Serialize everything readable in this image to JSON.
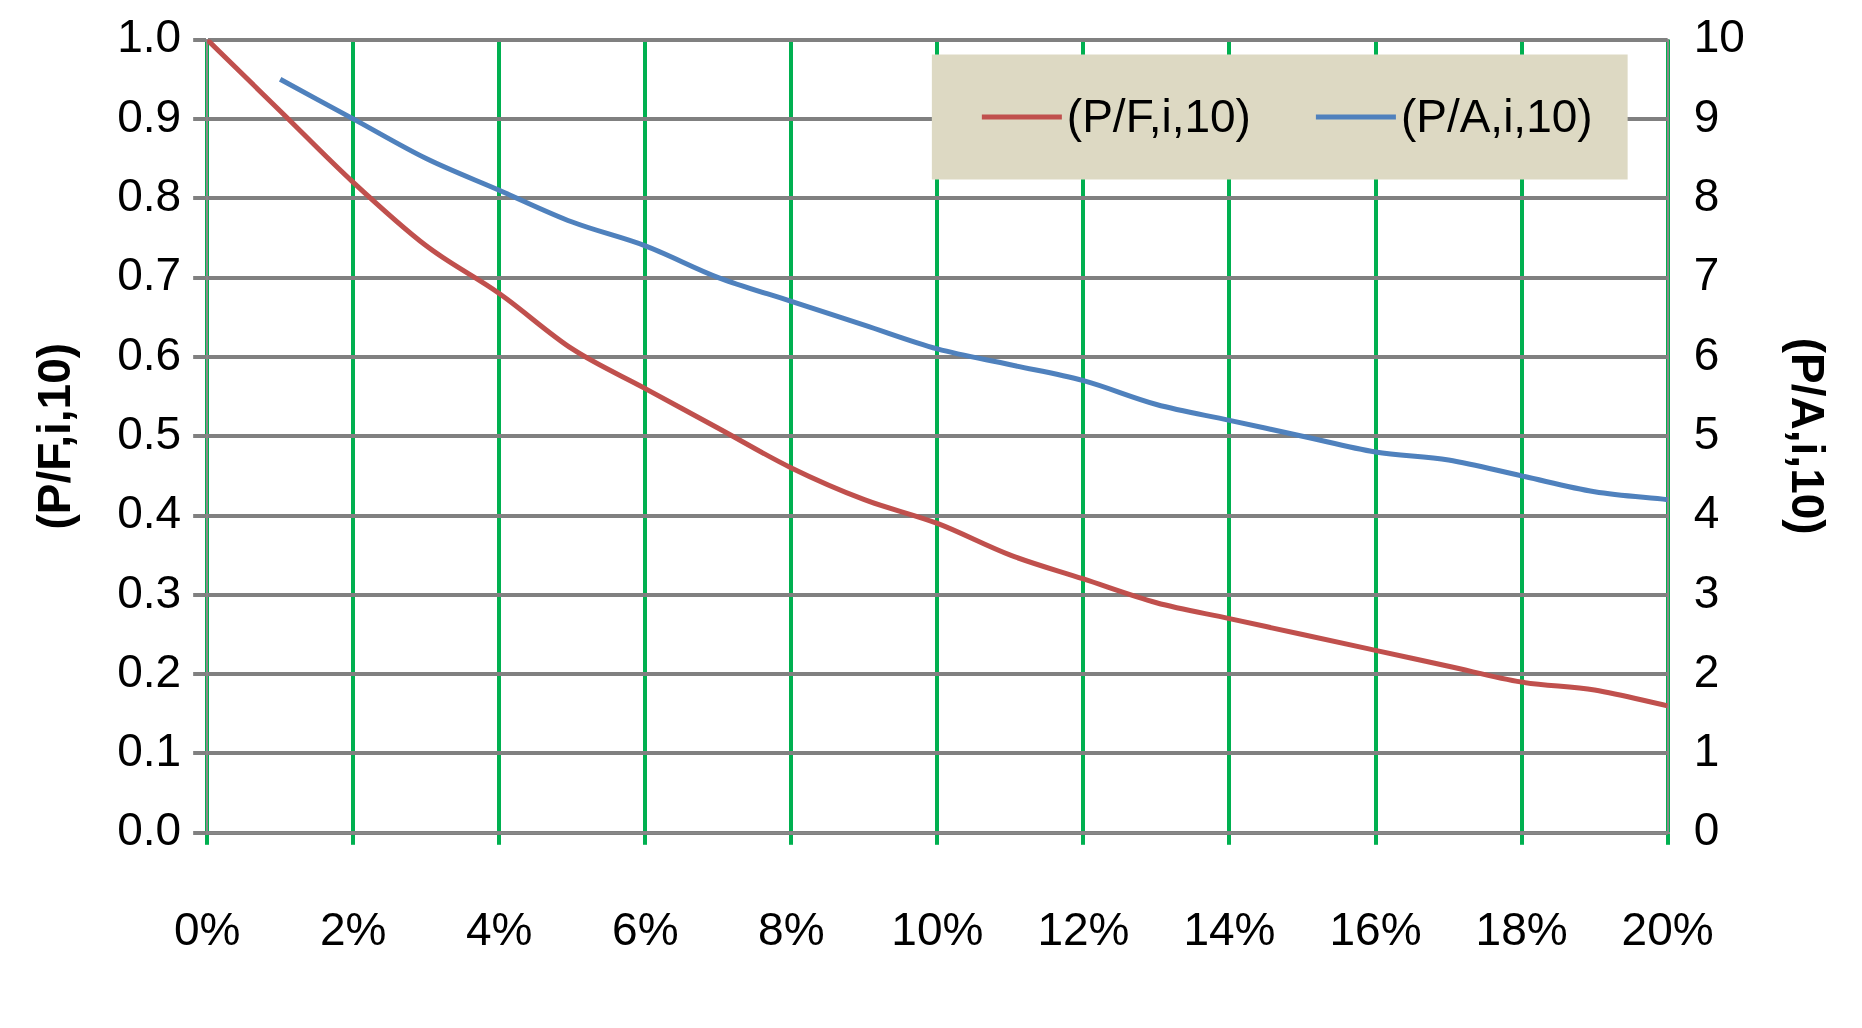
{
  "chart_data": {
    "type": "line",
    "ylabel": "(P/F,i,10)",
    "y2label": "(P/A,i,10)",
    "xlim": [
      0,
      20
    ],
    "xticks": [
      {
        "value": 0,
        "label": "0%"
      },
      {
        "value": 2,
        "label": "2%"
      },
      {
        "value": 4,
        "label": "4%"
      },
      {
        "value": 6,
        "label": "6%"
      },
      {
        "value": 8,
        "label": "8%"
      },
      {
        "value": 10,
        "label": "10%"
      },
      {
        "value": 12,
        "label": "12%"
      },
      {
        "value": 14,
        "label": "14%"
      },
      {
        "value": 16,
        "label": "16%"
      },
      {
        "value": 18,
        "label": "18%"
      },
      {
        "value": 20,
        "label": "20%"
      }
    ],
    "ylim": [
      0,
      1
    ],
    "yticks": [
      {
        "value": 0,
        "label": "0.0"
      },
      {
        "value": 0.1,
        "label": "0.1"
      },
      {
        "value": 0.2,
        "label": "0.2"
      },
      {
        "value": 0.3,
        "label": "0.3"
      },
      {
        "value": 0.4,
        "label": "0.4"
      },
      {
        "value": 0.5,
        "label": "0.5"
      },
      {
        "value": 0.6,
        "label": "0.6"
      },
      {
        "value": 0.7,
        "label": "0.7"
      },
      {
        "value": 0.8,
        "label": "0.8"
      },
      {
        "value": 0.9,
        "label": "0.9"
      },
      {
        "value": 1,
        "label": "1.0"
      }
    ],
    "y2lim": [
      0,
      10
    ],
    "y2ticks": [
      0,
      1,
      2,
      3,
      4,
      5,
      6,
      7,
      8,
      9,
      10
    ],
    "series": [
      {
        "name": "(P/F,i,10)",
        "color": "#c0504d",
        "x": [
          0,
          1,
          2,
          3,
          4,
          5,
          6,
          7,
          8,
          9,
          10,
          11,
          12,
          13,
          14,
          15,
          16,
          17,
          18,
          19,
          20
        ],
        "values": [
          1.0,
          0.91,
          0.82,
          0.74,
          0.68,
          0.61,
          0.56,
          0.51,
          0.46,
          0.42,
          0.39,
          0.35,
          0.32,
          0.29,
          0.27,
          0.25,
          0.23,
          0.21,
          0.19,
          0.18,
          0.16
        ]
      },
      {
        "name": "(P/A,i,10)",
        "color": "#4f81bd",
        "axis": "y2",
        "x": [
          1,
          2,
          3,
          4,
          5,
          6,
          7,
          8,
          9,
          10,
          11,
          12,
          13,
          14,
          15,
          16,
          17,
          18,
          19,
          20
        ],
        "values": [
          9.5,
          9.0,
          8.5,
          8.1,
          7.7,
          7.4,
          7.0,
          6.7,
          6.4,
          6.1,
          5.9,
          5.7,
          5.4,
          5.2,
          5.0,
          4.8,
          4.7,
          4.5,
          4.3,
          4.2
        ]
      }
    ],
    "grid": true,
    "legend": "top right",
    "marker": "none",
    "line_style": "solid"
  }
}
